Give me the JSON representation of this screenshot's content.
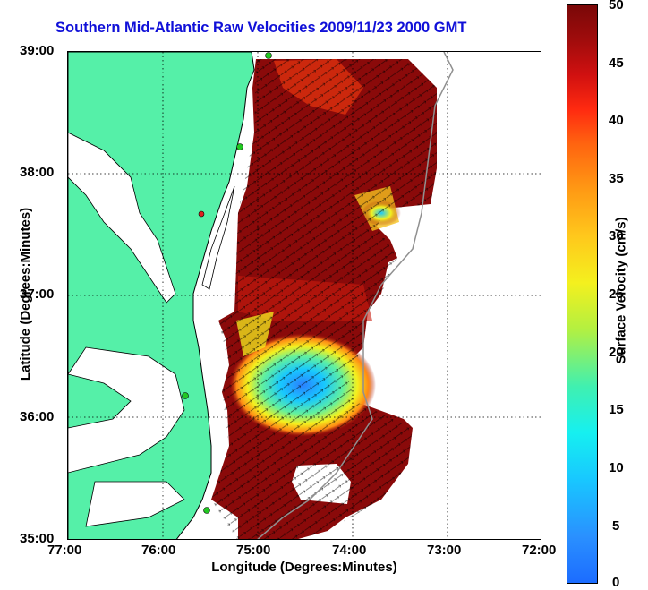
{
  "title": "Southern Mid-Atlantic Raw Velocities 2009/11/23 2000 GMT",
  "axes": {
    "xlabel": "Longitude (Degrees:Minutes)",
    "ylabel": "Latitude (Degrees:Minutes)",
    "x_ticks": [
      "77:00",
      "76:00",
      "75:00",
      "74:00",
      "73:00",
      "72:00"
    ],
    "y_ticks": [
      "39:00",
      "38:00",
      "37:00",
      "36:00",
      "35:00"
    ]
  },
  "colorbar": {
    "label": "Surface Velocity (cm/s)",
    "ticks": [
      "50",
      "45",
      "40",
      "35",
      "30",
      "25",
      "20",
      "15",
      "10",
      "5",
      "0"
    ]
  },
  "colors": {
    "title": "#1010d8",
    "land": "#55f0a8",
    "coast": "#000000",
    "high_speed": "#7a0808",
    "low_speed": "#1c6cff",
    "station_marker": "#22c822"
  }
}
